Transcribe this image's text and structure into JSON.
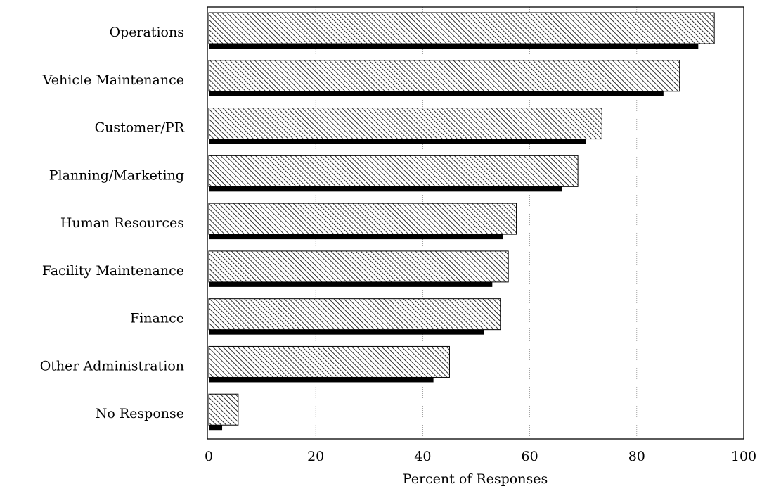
{
  "chart_data": {
    "type": "bar",
    "orientation": "horizontal",
    "categories": [
      "Operations",
      "Vehicle Maintenance",
      "Customer/PR",
      "Planning/Marketing",
      "Human Resources",
      "Facility Maintenance",
      "Finance",
      "Other Administration",
      "No Response"
    ],
    "series": [
      {
        "values": [
          94.5,
          88,
          73.5,
          69,
          57.5,
          56,
          54.5,
          45,
          5.5
        ],
        "fill": "hatched"
      },
      {
        "values": [
          91.5,
          85,
          70.5,
          66,
          55,
          53,
          51.5,
          42,
          2.5
        ],
        "fill": "#000000"
      }
    ],
    "xlabel": "Percent of Responses",
    "ylabel": "",
    "xlim": [
      0,
      100
    ],
    "xticks": [
      "0",
      "20",
      "40",
      "60",
      "80",
      "100"
    ],
    "grid": "vertical dotted",
    "legend": "none"
  }
}
